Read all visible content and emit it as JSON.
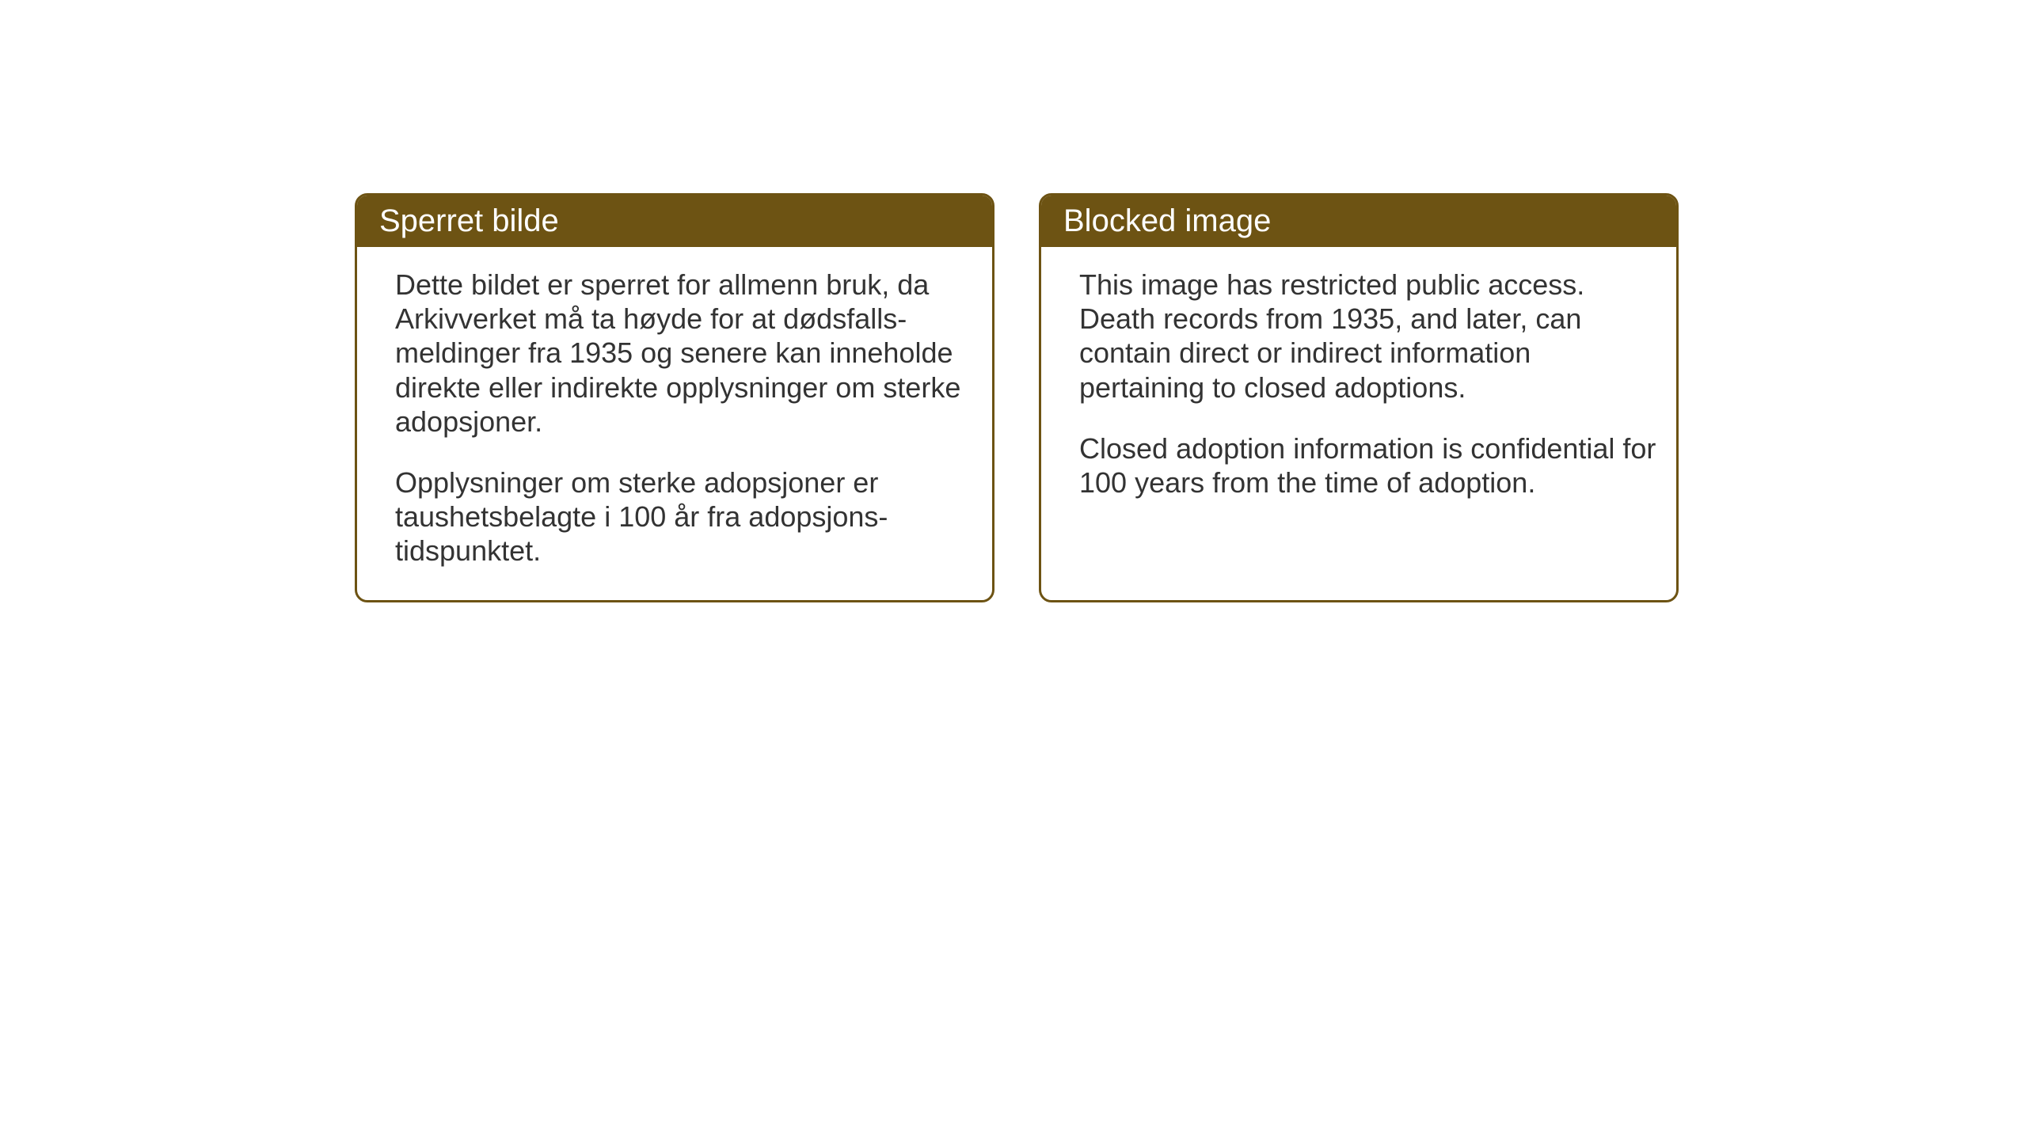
{
  "layout": {
    "background_color": "#ffffff",
    "card_border_color": "#6d5313",
    "card_header_bg_color": "#6d5313",
    "card_header_text_color": "#ffffff",
    "card_body_text_color": "#333333",
    "header_fontsize": 40,
    "body_fontsize": 36,
    "border_radius": 16,
    "border_width": 3
  },
  "cards": {
    "norwegian": {
      "title": "Sperret bilde",
      "paragraph1": "Dette bildet er sperret for allmenn bruk, da Arkivverket må ta høyde for at dødsfalls-meldinger fra 1935 og senere kan inneholde direkte eller indirekte opplysninger om sterke adopsjoner.",
      "paragraph2": "Opplysninger om sterke adopsjoner er taushetsbelagte i 100 år fra adopsjons-tidspunktet."
    },
    "english": {
      "title": "Blocked image",
      "paragraph1": "This image has restricted public access. Death records from 1935, and later, can contain direct or indirect information pertaining to closed adoptions.",
      "paragraph2": "Closed adoption information is confidential for 100 years from the time of adoption."
    }
  }
}
